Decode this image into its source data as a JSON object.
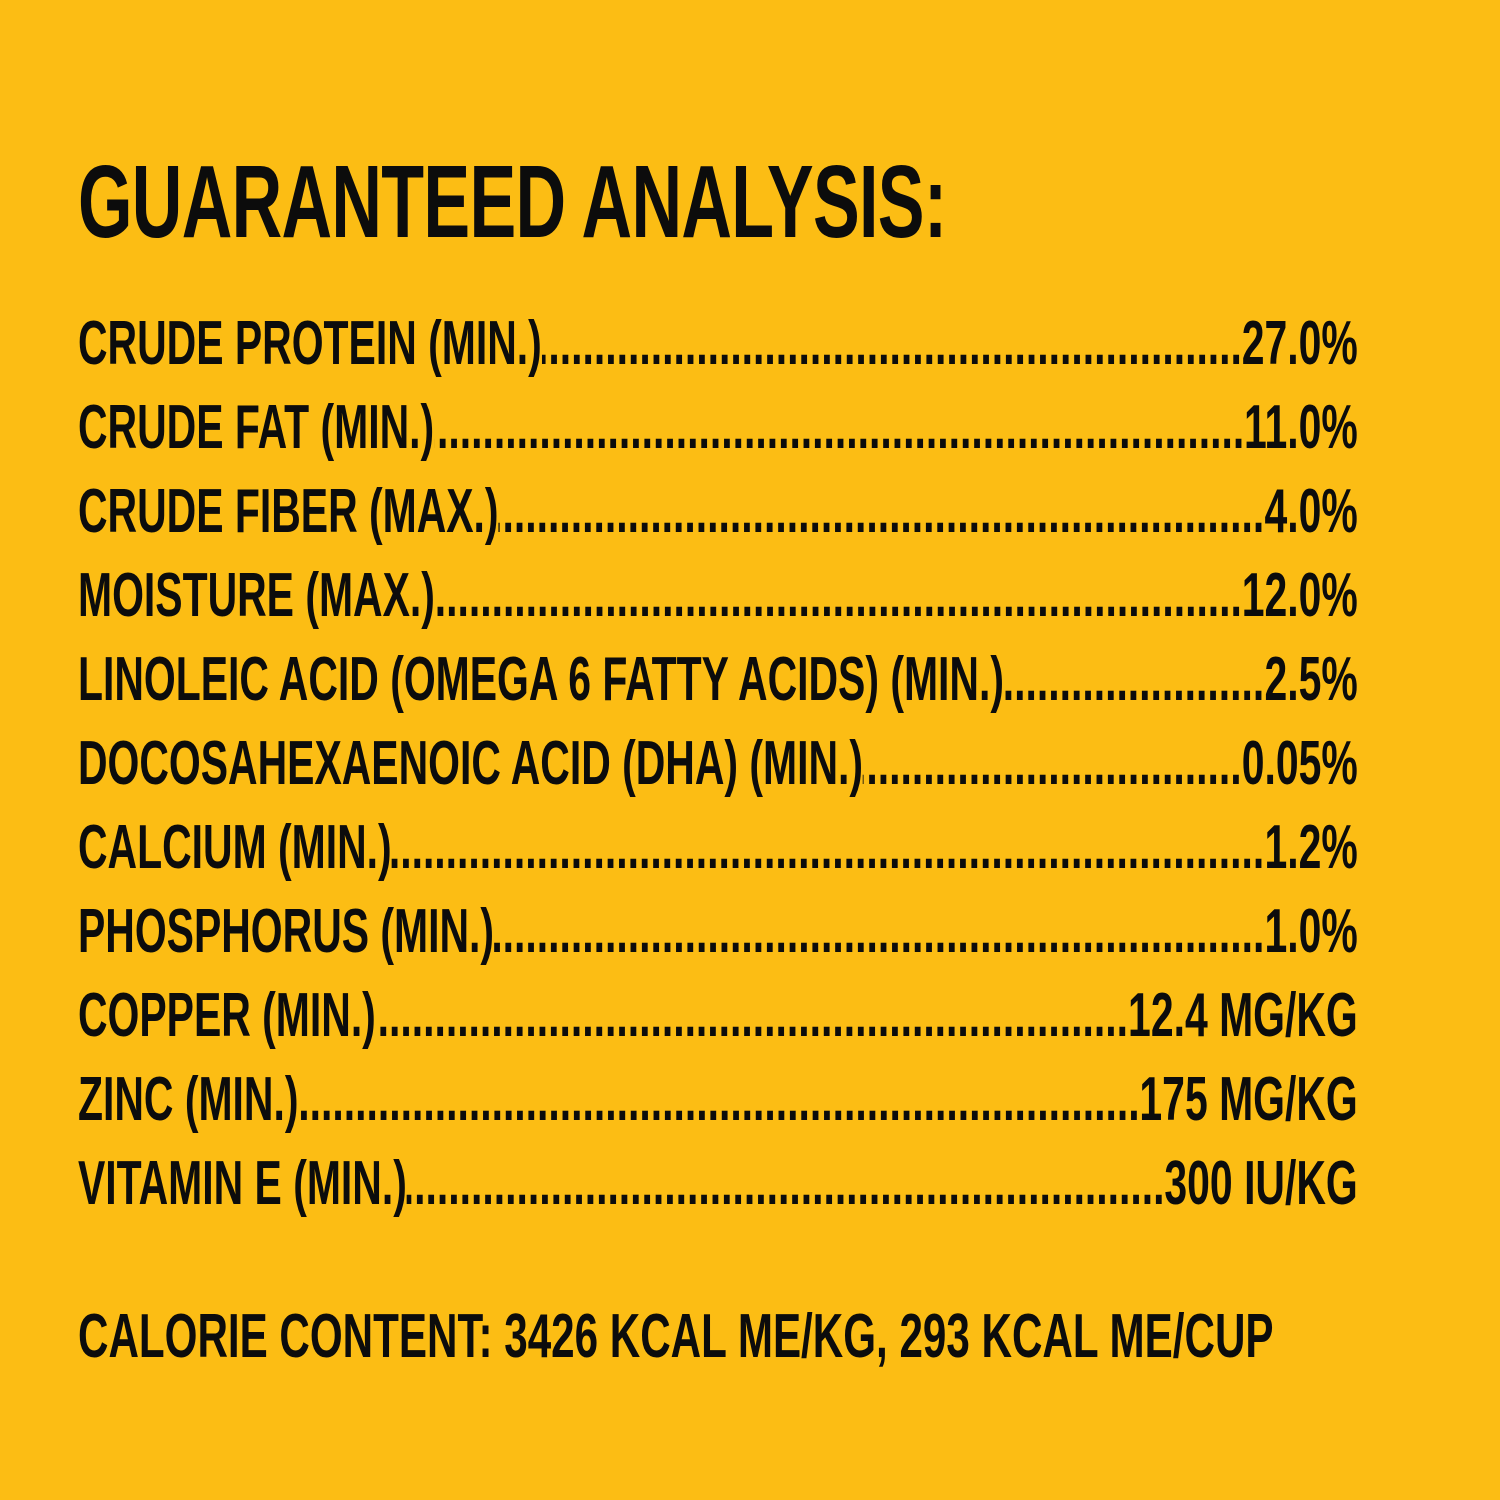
{
  "colors": {
    "background": "#FCBD14",
    "text": "#0C0C0C"
  },
  "label": {
    "title": "GUARANTEED ANALYSIS:",
    "rows": [
      {
        "label": "CRUDE PROTEIN (MIN.)",
        "value": "27.0%"
      },
      {
        "label": "CRUDE FAT (MIN.)",
        "value": "11.0%"
      },
      {
        "label": "CRUDE FIBER (MAX.)",
        "value": "4.0%"
      },
      {
        "label": "MOISTURE (MAX.)",
        "value": "12.0%"
      },
      {
        "label": "LINOLEIC ACID (OMEGA 6 FATTY ACIDS) (MIN.)",
        "value": "2.5%"
      },
      {
        "label": "DOCOSAHEXAENOIC ACID (DHA) (MIN.)",
        "value": "0.05%"
      },
      {
        "label": "CALCIUM (MIN.)",
        "value": "1.2%"
      },
      {
        "label": "PHOSPHORUS (MIN.)",
        "value": "1.0%"
      },
      {
        "label": "COPPER (MIN.)",
        "value": "12.4 MG/KG"
      },
      {
        "label": "ZINC (MIN.)",
        "value": "175 MG/KG"
      },
      {
        "label": "VITAMIN E (MIN.)",
        "value": "300 IU/KG"
      }
    ],
    "calorie_content": "CALORIE CONTENT: 3426 KCAL ME/KG, 293 KCAL ME/CUP"
  }
}
